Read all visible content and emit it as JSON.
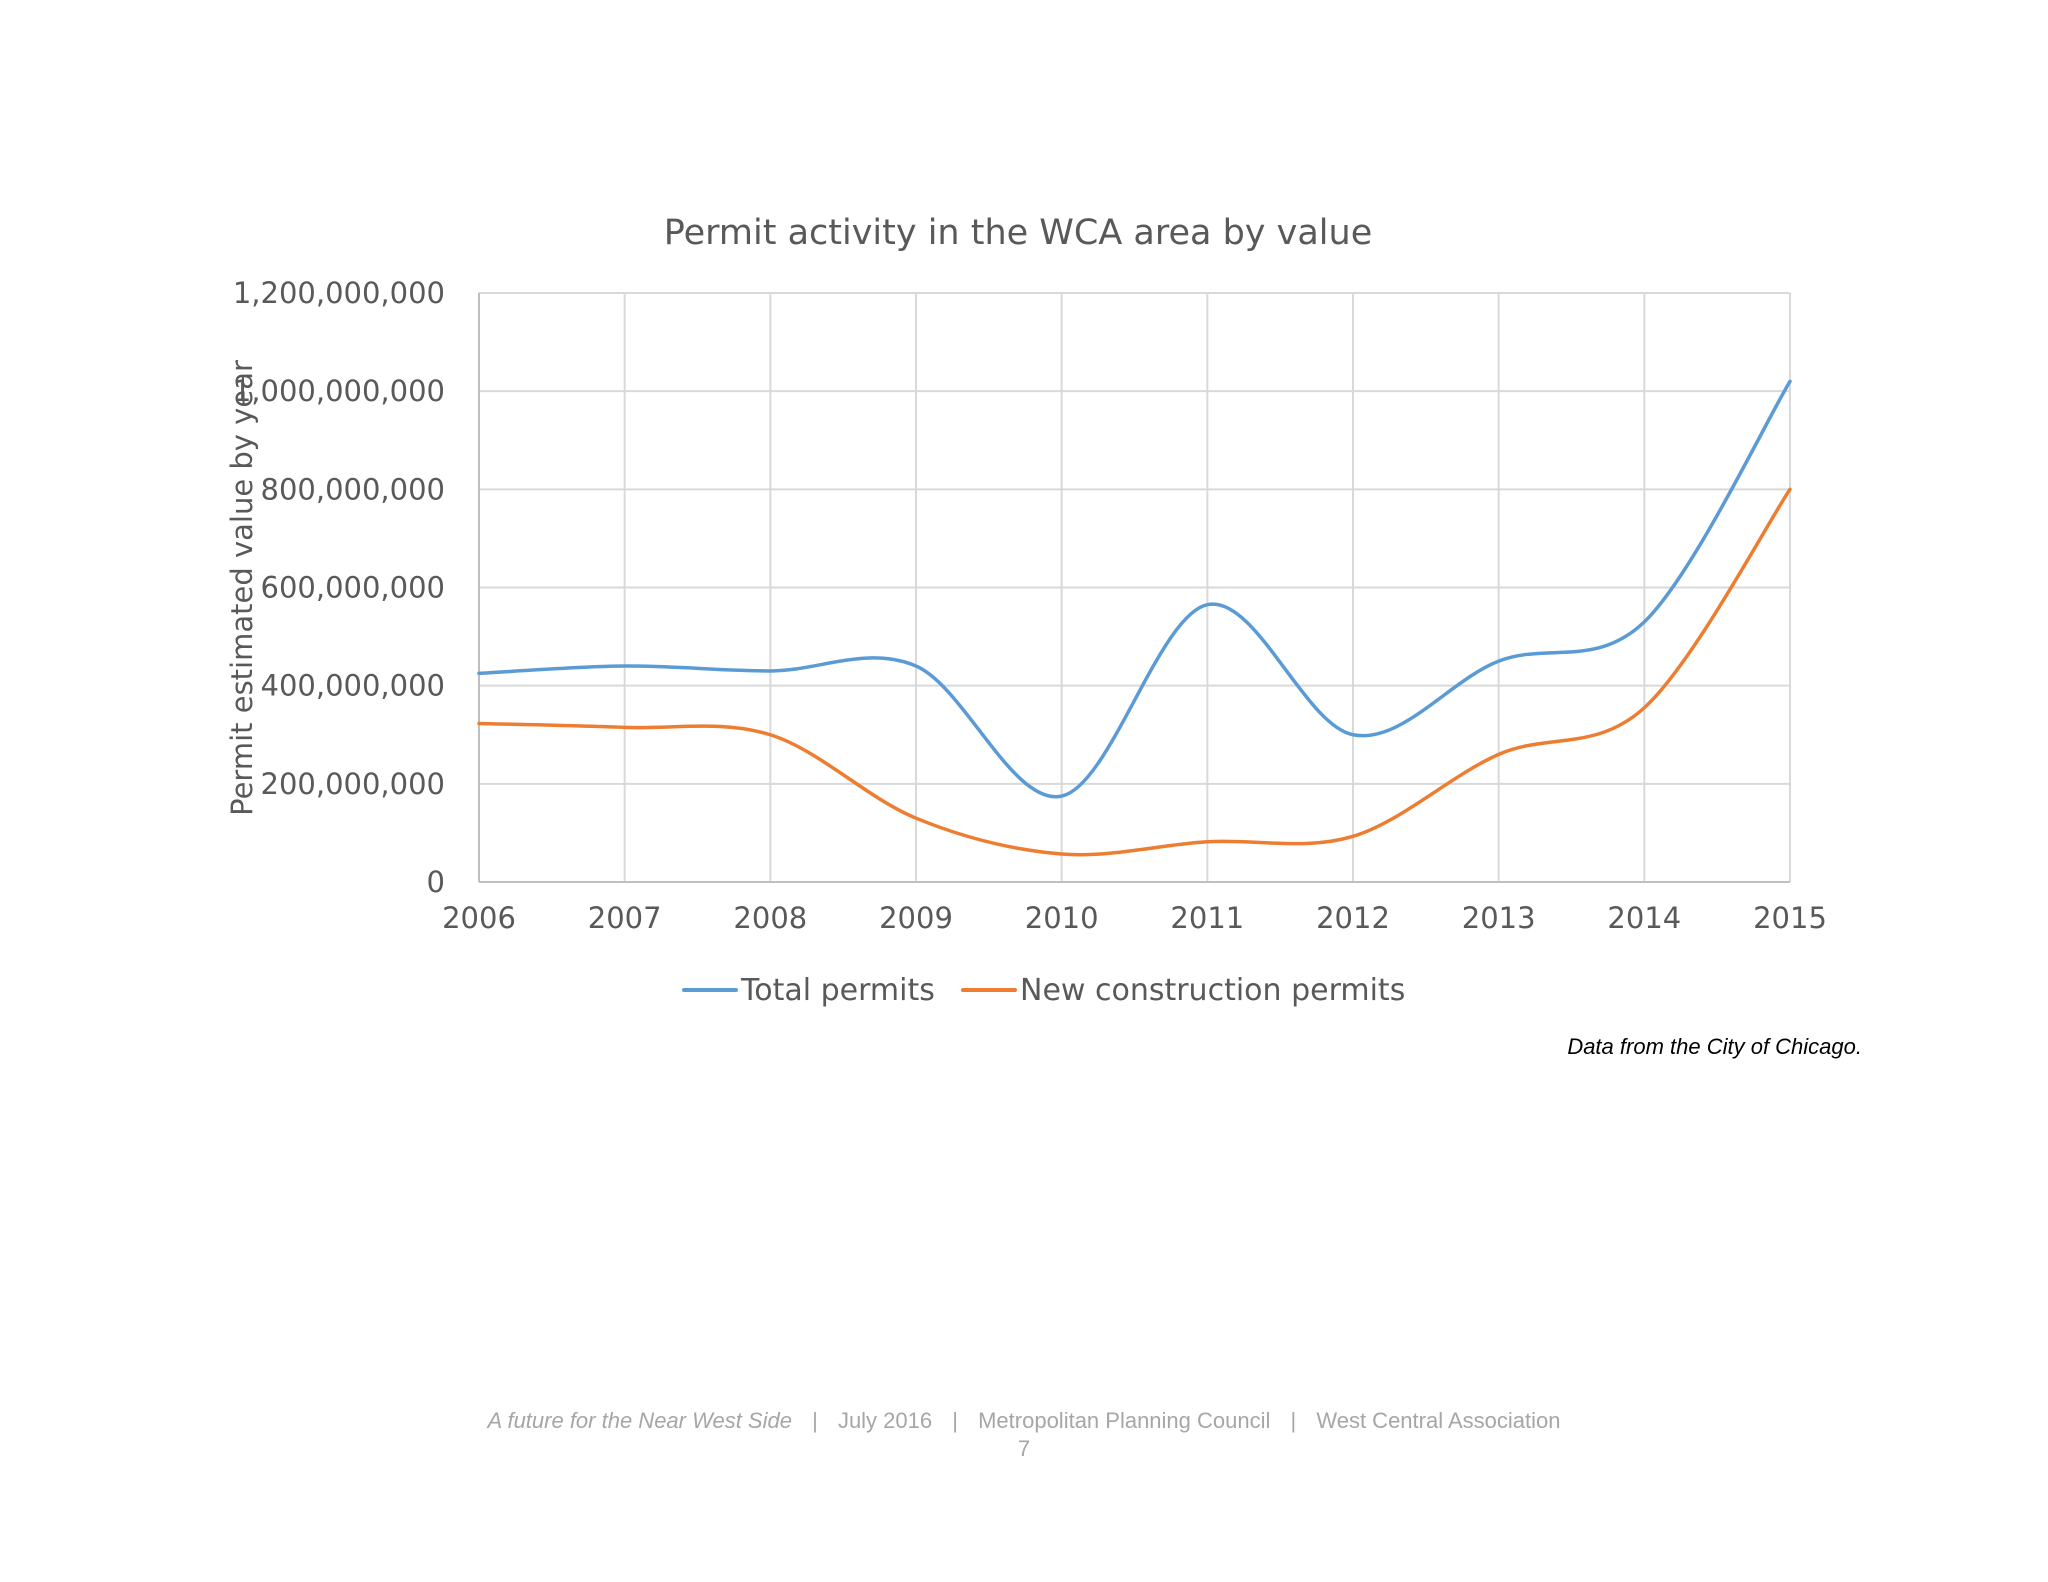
{
  "chart_data": {
    "type": "line",
    "title": "Permit activity in the WCA area by value",
    "xlabel": "",
    "ylabel": "Permit estimated value by year",
    "categories": [
      "2006",
      "2007",
      "2008",
      "2009",
      "2010",
      "2011",
      "2012",
      "2013",
      "2014",
      "2015"
    ],
    "ylim": [
      0,
      1200000000
    ],
    "yticks": [
      "0",
      "200,000,000",
      "400,000,000",
      "600,000,000",
      "800,000,000",
      "1,000,000,000",
      "1,200,000,000"
    ],
    "grid": true,
    "smooth": true,
    "legend_position": "bottom",
    "series": [
      {
        "name": "Total permits",
        "color": "#5B9BD5",
        "values": [
          425000000,
          440000000,
          430000000,
          440000000,
          175000000,
          565000000,
          300000000,
          450000000,
          530000000,
          1020000000
        ]
      },
      {
        "name": "New construction permits",
        "color": "#ED7D31",
        "values": [
          323000000,
          315000000,
          300000000,
          130000000,
          57000000,
          82000000,
          93000000,
          260000000,
          355000000,
          800000000
        ]
      }
    ]
  },
  "source_note": "Data from the City of Chicago.",
  "footer": {
    "publication": "A future for the Near West Side",
    "date": "July 2016",
    "org1": "Metropolitan Planning Council",
    "org2": "West Central Association",
    "separator": "|",
    "page_number": "7"
  }
}
